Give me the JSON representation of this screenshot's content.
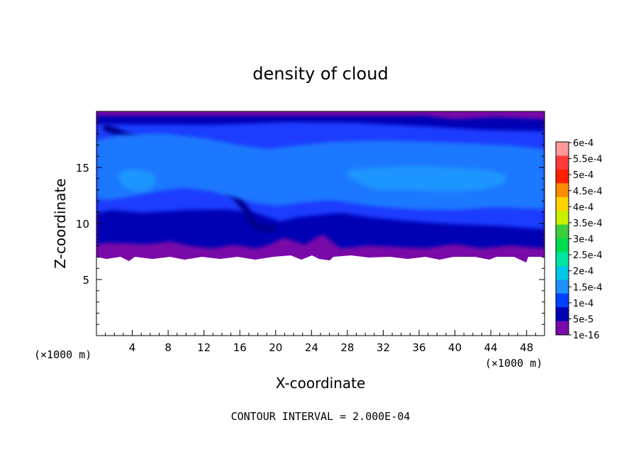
{
  "chart_data": {
    "type": "heatmap",
    "title": "density of cloud",
    "xlabel": "X-coordinate",
    "ylabel": "Z-coordinate",
    "x_unit": "(×1000 m)",
    "y_unit": "(×1000 m)",
    "x_ticks": [
      "4",
      "8",
      "12",
      "16",
      "20",
      "24",
      "28",
      "32",
      "36",
      "40",
      "44",
      "48"
    ],
    "y_ticks": [
      "5",
      "10",
      "15"
    ],
    "xlim": [
      0,
      50
    ],
    "ylim": [
      0,
      20
    ],
    "colorbar": {
      "labels": [
        "6e-4",
        "5.5e-4",
        "5e-4",
        "4.5e-4",
        "4e-4",
        "3.5e-4",
        "3e-4",
        "2.5e-4",
        "2e-4",
        "1.5e-4",
        "1e-4",
        "5e-5",
        "1e-16"
      ],
      "colors": [
        "#ff9a9a",
        "#ff3b3b",
        "#ff2000",
        "#ff8c00",
        "#ffd200",
        "#c8f000",
        "#3ccf3c",
        "#00dc50",
        "#00e6a0",
        "#00c8e6",
        "#1e90ff",
        "#0040ff",
        "#0000b4",
        "#7a0aa8"
      ]
    },
    "cloud_bands": [
      {
        "level": "1e-16",
        "zrange": [
          7.3,
          19.8
        ]
      },
      {
        "level": "5e-5",
        "zrange": [
          8.0,
          19.5
        ]
      },
      {
        "level": "1e-4",
        "zrange": [
          10.0,
          18.5
        ]
      },
      {
        "level": "1.5e-4",
        "zrange": [
          12.6,
          15.6
        ]
      }
    ],
    "note": "CONTOUR INTERVAL = 2.000E-04"
  }
}
